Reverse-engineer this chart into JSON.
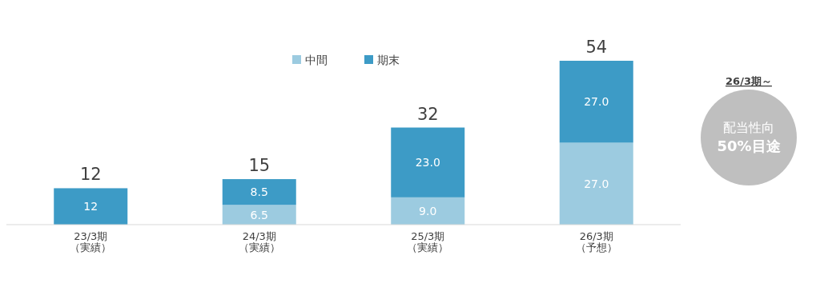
{
  "chart_data": {
    "type": "bar",
    "stacked": true,
    "categories": [
      "23/3期（実績）",
      "24/3期（実績）",
      "25/3期（実績）",
      "26/3期（予想）"
    ],
    "series": [
      {
        "name": "中間",
        "color": "#9ccbe0",
        "values": [
          null,
          6.5,
          9.0,
          27.0
        ],
        "value_labels": [
          null,
          "6.5",
          "9.0",
          "27.0"
        ]
      },
      {
        "name": "期末",
        "color": "#3d9bc6",
        "values": [
          12,
          8.5,
          23.0,
          27.0
        ],
        "value_labels": [
          "12",
          "8.5",
          "23.0",
          "27.0"
        ]
      }
    ],
    "totals": [
      "12",
      "15",
      "32",
      "54"
    ],
    "legend": "top",
    "annotations": [
      "26/3期～",
      "配当性向",
      "50%目途"
    ]
  }
}
